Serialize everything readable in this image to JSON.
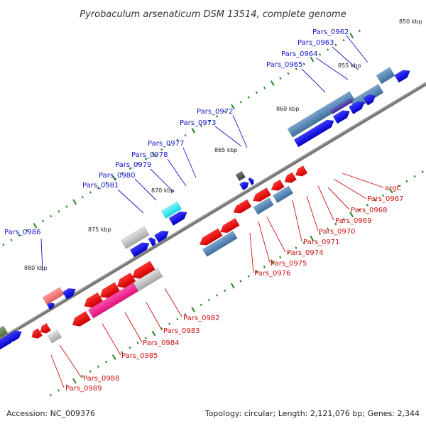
{
  "title": "Pyrobaculum arsenaticum DSM 13514, complete genome",
  "accession": "Accession: NC_009376",
  "summary": "Topology: circular; Length: 2,121,076 bp; Genes: 2,344",
  "colors": {
    "forward_label": "#1515c8",
    "reverse_label": "#d01010",
    "backbone": "#777777",
    "tick": "#2c8a2c"
  },
  "kbp_labels": [
    "850 kbp",
    "855 kbp",
    "860 kbp",
    "865 kbp",
    "870 kbp",
    "875 kbp",
    "880 kbp"
  ],
  "forward_labels": [
    "Pars_0962",
    "Pars_0963",
    "Pars_0964",
    "Pars_0965",
    "Pars_0972",
    "Pars_0973",
    "Pars_0977",
    "Pars_0978",
    "Pars_0979",
    "Pars_0980",
    "Pars_0981",
    "Pars_0986"
  ],
  "reverse_labels": [
    "argC",
    "Pars_0967",
    "Pars_0968",
    "Pars_0969",
    "Pars_0970",
    "Pars_0971",
    "Pars_0974",
    "Pars_0975",
    "Pars_0976",
    "Pars_0982",
    "Pars_0983",
    "Pars_0984",
    "Pars_0985",
    "Pars_0988",
    "Pars_0989"
  ]
}
